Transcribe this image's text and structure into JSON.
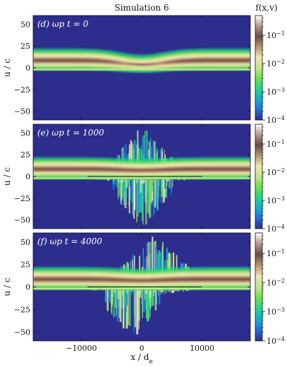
{
  "title": "Simulation 6",
  "colorbar_label": "f(x,v)",
  "colormap_stops": [
    "#2d2d8e",
    "#1f6fe0",
    "#12b0d4",
    "#1ed889",
    "#6fe24b",
    "#c6e68a",
    "#efe3b2",
    "#b8946e",
    "#6b4a44",
    "#b89890",
    "#ffffff"
  ],
  "chart_data": [
    {
      "type": "heatmap",
      "annotation": "(d) ωp t = 0",
      "ylabel": "u / c",
      "xlim": [
        -18000,
        18000
      ],
      "ylim": [
        -60,
        60
      ],
      "yticks": [
        50,
        25,
        0,
        -25,
        -50
      ],
      "xticks": [
        -10000,
        0,
        10000
      ],
      "zscale": "log",
      "zlim": [
        0.0001,
        0.5
      ],
      "cbar_ticks": [
        "10^-1",
        "10^-2",
        "10^-3",
        "10^-4"
      ],
      "background_color": "#2d2d8e",
      "beam_band_u": [
        5,
        18
      ],
      "core_u": 0,
      "turbulence": "none"
    },
    {
      "type": "heatmap",
      "annotation": "(e) ωp t = 1000",
      "ylabel": "u / c",
      "xlim": [
        -18000,
        18000
      ],
      "ylim": [
        -60,
        60
      ],
      "yticks": [
        50,
        25,
        0,
        -25,
        -50
      ],
      "xticks": [
        -10000,
        0,
        10000
      ],
      "zscale": "log",
      "zlim": [
        0.0001,
        0.5
      ],
      "cbar_ticks": [
        "10^-1",
        "10^-2",
        "10^-3",
        "10^-4"
      ],
      "background_color": "#2d2d8e",
      "beam_band_u": [
        4,
        16
      ],
      "core_u": 0,
      "turbulence": "central"
    },
    {
      "type": "heatmap",
      "annotation": "(f) ωp t = 4000",
      "ylabel": "u / c",
      "xlabel": "x / de",
      "xlim": [
        -18000,
        18000
      ],
      "ylim": [
        -60,
        60
      ],
      "yticks": [
        50,
        25,
        0,
        -25,
        -50
      ],
      "xticks": [
        -10000,
        0,
        10000
      ],
      "zscale": "log",
      "zlim": [
        0.0001,
        0.5
      ],
      "cbar_ticks": [
        "10^-1",
        "10^-2",
        "10^-3",
        "10^-4"
      ],
      "background_color": "#2d2d8e",
      "beam_band_u": [
        4,
        16
      ],
      "core_u": 0,
      "turbulence": "extended"
    }
  ]
}
